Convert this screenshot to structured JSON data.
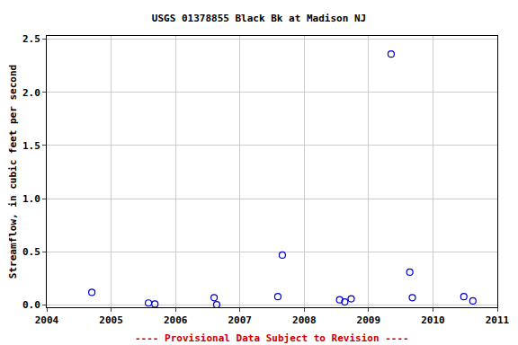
{
  "chart_data": {
    "type": "scatter",
    "title": "USGS 01378855 Black Bk at Madison NJ",
    "y_label": "Streamflow, in cubic feet per second",
    "annotation": "---- Provisional Data Subject to Revision ----",
    "x": [
      2004.7,
      2005.58,
      2005.68,
      2006.6,
      2006.64,
      2007.59,
      2007.66,
      2008.55,
      2008.63,
      2008.73,
      2009.35,
      2009.64,
      2009.68,
      2010.48,
      2010.62
    ],
    "values": [
      0.12,
      0.02,
      0.01,
      0.07,
      0.005,
      0.08,
      0.47,
      0.05,
      0.03,
      0.06,
      2.36,
      0.31,
      0.07,
      0.08,
      0.04
    ],
    "color": "#0000cc",
    "marker": "open-circle",
    "xlim": [
      2004,
      2011
    ],
    "xticks": [
      2004,
      2005,
      2006,
      2007,
      2008,
      2009,
      2010,
      2011
    ],
    "ylim": [
      -0.02,
      2.53
    ],
    "yticks": [
      {
        "value": 0,
        "label": "0.0"
      },
      {
        "value": 0.5,
        "label": "0.5"
      },
      {
        "value": 1,
        "label": "1.0"
      },
      {
        "value": 1.5,
        "label": "1.5"
      },
      {
        "value": 2,
        "label": "2.0"
      },
      {
        "value": 2.5,
        "label": "2.5"
      }
    ],
    "grid": true
  }
}
